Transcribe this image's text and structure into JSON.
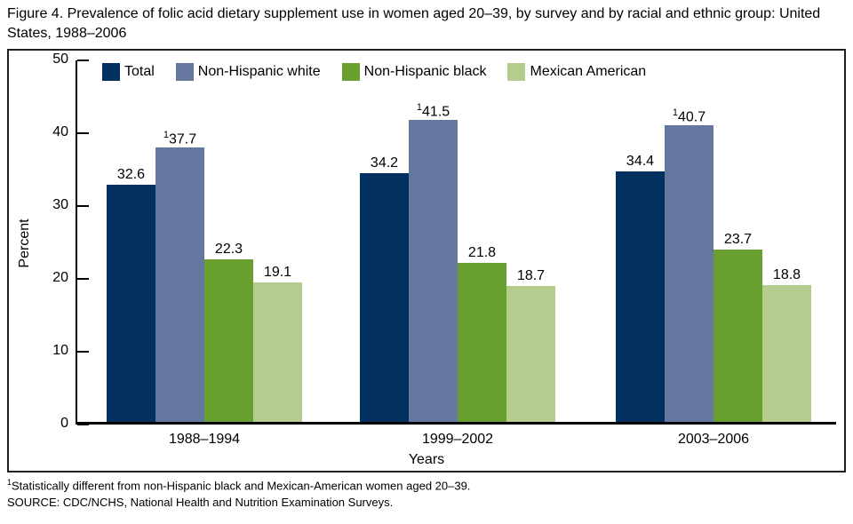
{
  "figure_title": "Figure 4. Prevalence of folic acid dietary supplement use in women aged 20–39, by survey and by racial and ethnic group: United States, 1988–2006",
  "chart_data": {
    "type": "bar",
    "title": "Figure 4. Prevalence of folic acid dietary supplement use in women aged 20–39, by survey and by racial and ethnic group: United States, 1988–2006",
    "categories": [
      "1988–1994",
      "1999–2002",
      "2003–2006"
    ],
    "series": [
      {
        "name": "Total",
        "color": "#03305e",
        "values": [
          32.6,
          34.2,
          34.4
        ],
        "markers": [
          "",
          "",
          ""
        ]
      },
      {
        "name": "Non-Hispanic white",
        "color": "#64779f",
        "values": [
          37.7,
          41.5,
          40.7
        ],
        "markers": [
          "1",
          "1",
          "1"
        ]
      },
      {
        "name": "Non-Hispanic black",
        "color": "#699f2f",
        "values": [
          22.3,
          21.8,
          23.7
        ],
        "markers": [
          "",
          "",
          ""
        ]
      },
      {
        "name": "Mexican American",
        "color": "#b4cd8e",
        "values": [
          19.1,
          18.7,
          18.8
        ],
        "markers": [
          "",
          "",
          ""
        ]
      }
    ],
    "xlabel": "Years",
    "ylabel": "Percent",
    "ylim": [
      0,
      50
    ],
    "yticks": [
      0,
      10,
      20,
      30,
      40,
      50
    ],
    "grid": false,
    "legend_position": "top"
  },
  "footnotes": [
    {
      "marker": "1",
      "text": "Statistically different from non-Hispanic black and Mexican-American women aged 20–39."
    },
    {
      "marker": "",
      "text": "SOURCE: CDC/NCHS, National Health and Nutrition Examination Surveys."
    }
  ]
}
